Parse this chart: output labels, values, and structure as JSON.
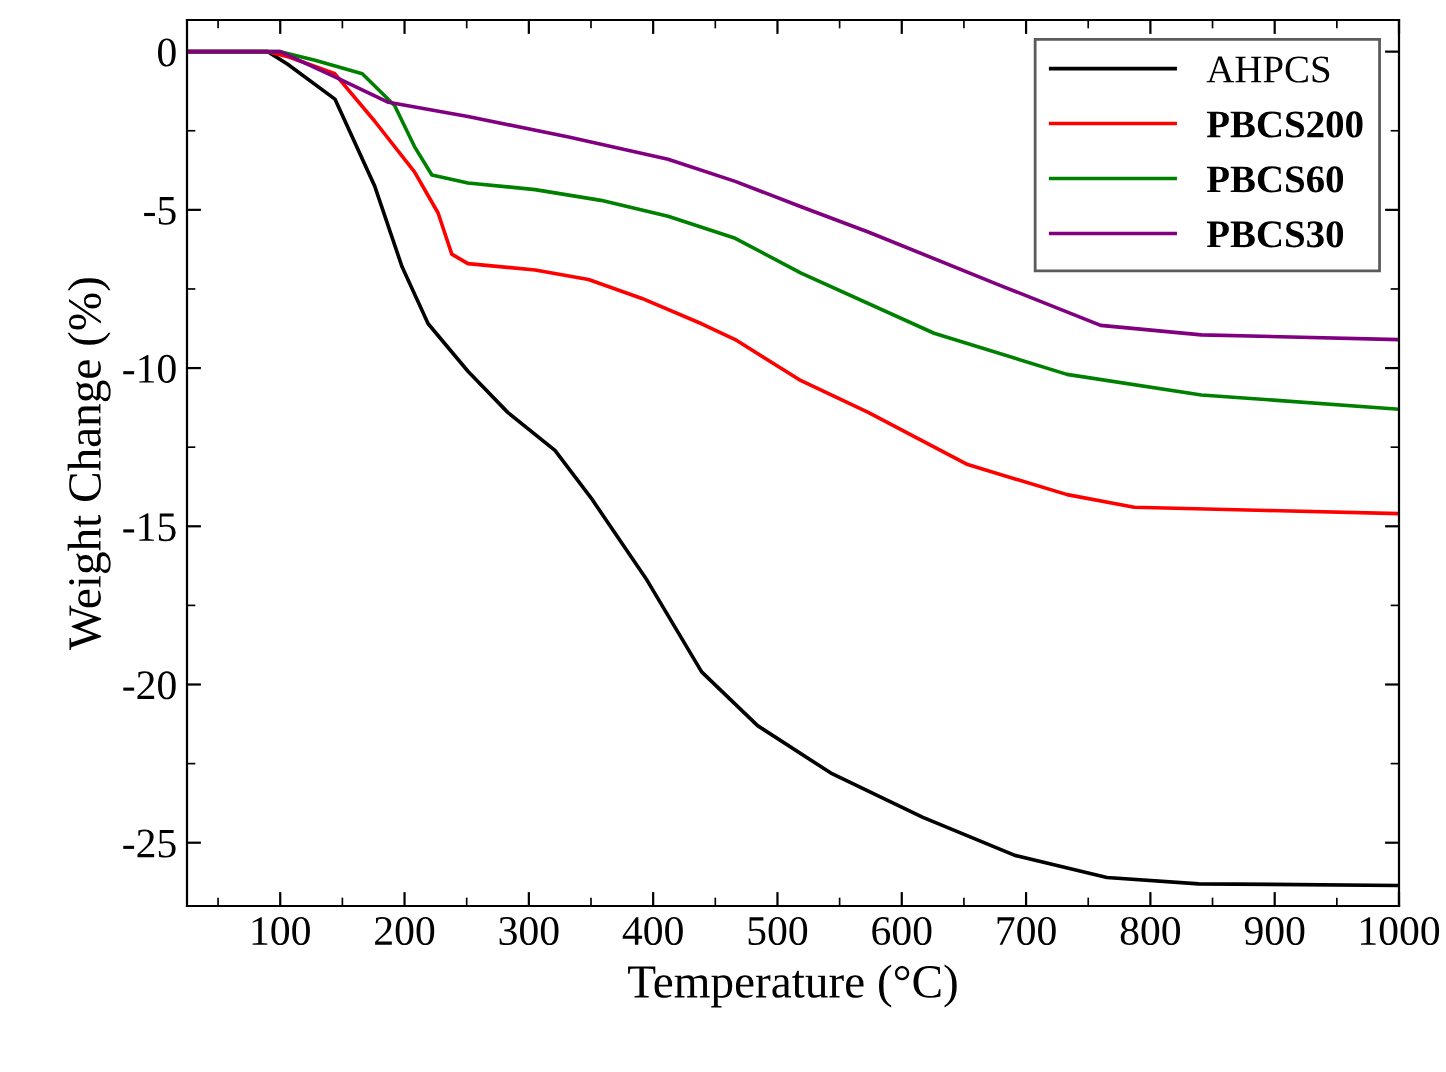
{
  "chart_data": {
    "type": "line",
    "xlabel": "Temperature (°C)",
    "ylabel": "Weight Change (%)",
    "xlim": [
      25,
      1000
    ],
    "ylim": [
      -27,
      1
    ],
    "xticks": [
      100,
      200,
      300,
      400,
      500,
      600,
      700,
      800,
      900,
      1000
    ],
    "yticks": [
      0,
      -5,
      -10,
      -15,
      -20,
      -25
    ],
    "legend": "top right",
    "grid": false,
    "marker": "none",
    "line_style": "solid",
    "series": [
      {
        "name": "AHPCS",
        "color": "#000000",
        "x": [
          25,
          90,
          106,
          144,
          176,
          198,
          219,
          251,
          283,
          321,
          350,
          395,
          439,
          484,
          543,
          617,
          691,
          765,
          839,
          1000
        ],
        "values": [
          0,
          0,
          -0.4,
          -1.5,
          -4.25,
          -6.8,
          -8.6,
          -10.1,
          -11.4,
          -12.6,
          -14.1,
          -16.7,
          -19.6,
          -21.3,
          -22.8,
          -24.2,
          -25.4,
          -26.1,
          -26.3,
          -26.35
        ]
      },
      {
        "name": "PBCS200",
        "color": "#ff0000",
        "x": [
          25,
          90,
          107,
          144,
          176,
          208,
          227,
          238,
          251,
          305,
          348,
          391,
          439,
          466,
          519,
          573,
          653,
          733,
          787,
          894,
          1000
        ],
        "values": [
          0,
          0,
          -0.17,
          -0.7,
          -2.2,
          -3.8,
          -5.1,
          -6.4,
          -6.7,
          -6.9,
          -7.2,
          -7.8,
          -8.6,
          -9.1,
          -10.4,
          -11.4,
          -13.05,
          -14.0,
          -14.4,
          -14.5,
          -14.6
        ]
      },
      {
        "name": "PBCS60",
        "color": "#008000",
        "x": [
          25,
          100,
          128,
          166,
          192,
          208,
          222,
          251,
          305,
          358,
          412,
          466,
          519,
          626,
          733,
          841,
          1000
        ],
        "values": [
          0,
          0,
          -0.27,
          -0.7,
          -1.7,
          -3.0,
          -3.9,
          -4.15,
          -4.36,
          -4.7,
          -5.2,
          -5.9,
          -7.0,
          -8.9,
          -10.2,
          -10.85,
          -11.3
        ]
      },
      {
        "name": "PBCS30",
        "color": "#800080",
        "x": [
          25,
          100,
          144,
          187,
          251,
          332,
          412,
          466,
          519,
          573,
          680,
          760,
          841,
          1000
        ],
        "values": [
          0,
          0,
          -0.8,
          -1.6,
          -2.05,
          -2.7,
          -3.4,
          -4.1,
          -4.9,
          -5.7,
          -7.4,
          -8.65,
          -8.95,
          -9.1
        ]
      }
    ]
  }
}
